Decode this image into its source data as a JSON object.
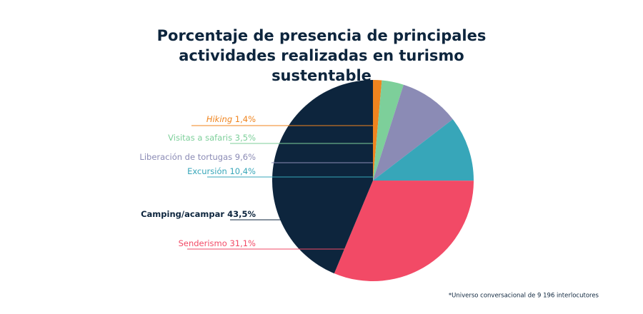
{
  "chart_data": {
    "type": "pie",
    "title": "Porcentaje de presencia de principales actividades realizadas en turismo sustentable",
    "categories": [
      "Hiking",
      "Visitas a safaris",
      "Liberación de tortugas",
      "Excursión",
      "Senderismo",
      "Camping/acampar"
    ],
    "values": [
      1.4,
      3.5,
      9.6,
      10.4,
      31.1,
      43.5
    ],
    "value_labels": [
      "1,4%",
      "3,5%",
      "9,6%",
      "10,4%",
      "31,1%",
      "43,5%"
    ],
    "colors": [
      "#f0841e",
      "#7dcf9a",
      "#8b8bb5",
      "#37a6b9",
      "#f24a66",
      "#0d253d"
    ],
    "footnote": "*Universo conversacional de 9 196 interlocutores"
  }
}
